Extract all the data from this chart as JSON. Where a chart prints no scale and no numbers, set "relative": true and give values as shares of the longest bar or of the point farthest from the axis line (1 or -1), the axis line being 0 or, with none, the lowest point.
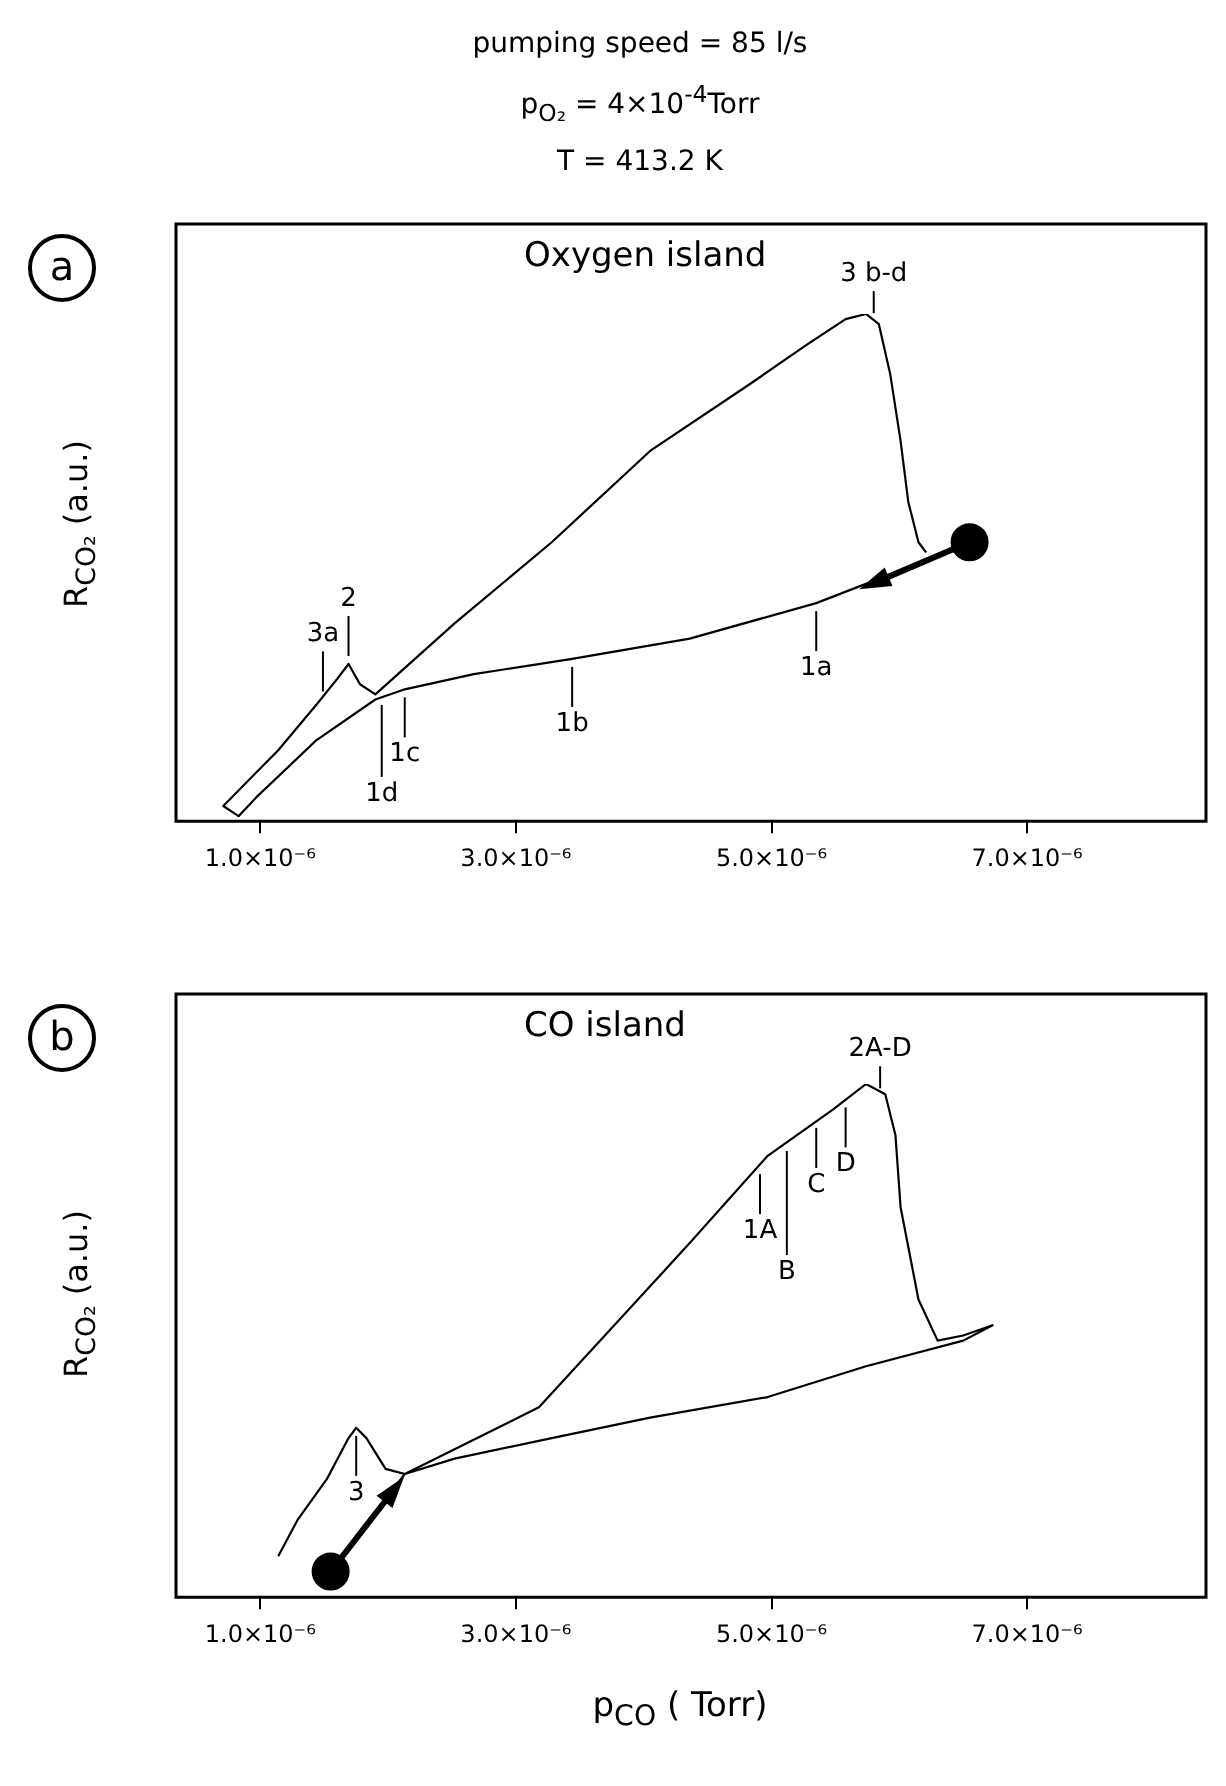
{
  "chart_data": [
    {
      "type": "line",
      "title": "Oxygen island",
      "ylabel": "R$_{CO₂}$ (a.u.)",
      "relative": true,
      "line_style": "solid",
      "tick_labels": "x",
      "grid": false,
      "legend": false,
      "xlim": [
        3.4e-07,
        8.4e-06
      ],
      "xticks": [
        {
          "value": 1e-06,
          "label": "1.0×10⁻⁶"
        },
        {
          "value": 3e-06,
          "label": "3.0×10⁻⁶"
        },
        {
          "value": 5e-06,
          "label": "5.0×10⁻⁶"
        },
        {
          "value": 7e-06,
          "label": "7.0×10⁻⁶"
        }
      ],
      "series": [
        {
          "color": "#000000",
          "x": [
            6.27e-06,
            5.35e-06,
            4.36e-06,
            3.44e-06,
            2.67e-06,
            2.13e-06,
            1.9e-06,
            1.44e-06,
            9.8e-07,
            8.3e-07,
            7.1e-07,
            1.14e-06,
            1.44e-06,
            1.6e-06,
            1.69e-06,
            1.78e-06,
            1.9e-06,
            2.52e-06,
            3.28e-06,
            4.05e-06,
            4.82e-06,
            5.28e-06,
            5.58e-06,
            5.74e-06,
            5.84e-06,
            5.93e-06,
            6.01e-06,
            6.07e-06,
            6.15e-06,
            6.21e-06
          ],
          "values": [
            0.52,
            0.43,
            0.36,
            0.32,
            0.29,
            0.26,
            0.24,
            0.16,
            0.05,
            0.01,
            0.03,
            0.14,
            0.23,
            0.28,
            0.31,
            0.27,
            0.25,
            0.39,
            0.55,
            0.73,
            0.86,
            0.94,
            0.99,
            1,
            0.98,
            0.88,
            0.75,
            0.63,
            0.55,
            0.53
          ]
        },
        {
          "type": "scatter",
          "color": "#000000",
          "x": [
            6.55e-06
          ],
          "values": [
            0.55
          ]
        }
      ],
      "annotations": [
        "pumping speed = 85 l/s",
        "p$_{O₂}$ = 4×10$^{-4}$Torr",
        "T = 413.2 K",
        "a",
        {
          "text": "3a",
          "x": 1.49e-06,
          "y": 0.24
        },
        {
          "text": "2",
          "x": 1.69e-06,
          "y": 0.31
        },
        {
          "text": "1c",
          "x": 2.13e-06,
          "y": 0.26
        },
        {
          "text": "1d",
          "x": 1.95e-06,
          "y": 0.245
        },
        {
          "text": "1b",
          "x": 3.44e-06,
          "y": 0.32
        },
        {
          "text": "1a",
          "x": 5.35e-06,
          "y": 0.43
        },
        {
          "text": "3 b-d",
          "x": 5.8e-06,
          "y": 0.99
        }
      ]
    },
    {
      "type": "line",
      "title": "CO island",
      "xlabel": "p$_{CO}$ ( Torr)",
      "ylabel": "R$_{CO₂}$ (a.u.)",
      "relative": true,
      "line_style": "solid",
      "tick_labels": "x",
      "grid": false,
      "legend": false,
      "xlim": [
        3.4e-07,
        8.4e-06
      ],
      "xticks": [
        {
          "value": 1e-06,
          "label": "1.0×10⁻⁶"
        },
        {
          "value": 3e-06,
          "label": "3.0×10⁻⁶"
        },
        {
          "value": 5e-06,
          "label": "5.0×10⁻⁶"
        },
        {
          "value": 7e-06,
          "label": "7.0×10⁻⁶"
        }
      ],
      "series": [
        {
          "color": "#000000",
          "x": [
            1.55e-06,
            1.83e-06,
            2.13e-06,
            3.18e-06,
            4.36e-06,
            4.97e-06,
            5.48e-06,
            5.74e-06,
            5.89e-06,
            5.97e-06,
            6.01e-06,
            6.15e-06,
            6.3e-06,
            6.5e-06,
            6.73e-06,
            6.5e-06,
            5.74e-06,
            4.97e-06,
            4.05e-06,
            3.28e-06,
            2.52e-06,
            2.13e-06,
            1.98e-06,
            1.83e-06,
            1.75e-06,
            1.69e-06,
            1.52e-06,
            1.29e-06,
            1.14e-06
          ],
          "values": [
            0.05,
            0.14,
            0.24,
            0.37,
            0.69,
            0.86,
            0.95,
            1,
            0.98,
            0.9,
            0.76,
            0.58,
            0.5,
            0.51,
            0.53,
            0.5,
            0.45,
            0.39,
            0.35,
            0.31,
            0.27,
            0.24,
            0.25,
            0.31,
            0.33,
            0.31,
            0.23,
            0.15,
            0.08
          ]
        },
        {
          "type": "scatter",
          "color": "#000000",
          "x": [
            1.55e-06
          ],
          "values": [
            0.05
          ]
        }
      ],
      "annotations": [
        "b",
        {
          "text": "3",
          "x": 1.75e-06,
          "y": 0.33
        },
        {
          "text": "1A",
          "x": 4.91e-06,
          "y": 0.84
        },
        {
          "text": "B",
          "x": 5.12e-06,
          "y": 0.885
        },
        {
          "text": "C",
          "x": 5.35e-06,
          "y": 0.93
        },
        {
          "text": "D",
          "x": 5.58e-06,
          "y": 0.97
        },
        {
          "text": "2A-D",
          "x": 5.85e-06,
          "y": 0.98
        }
      ]
    }
  ]
}
